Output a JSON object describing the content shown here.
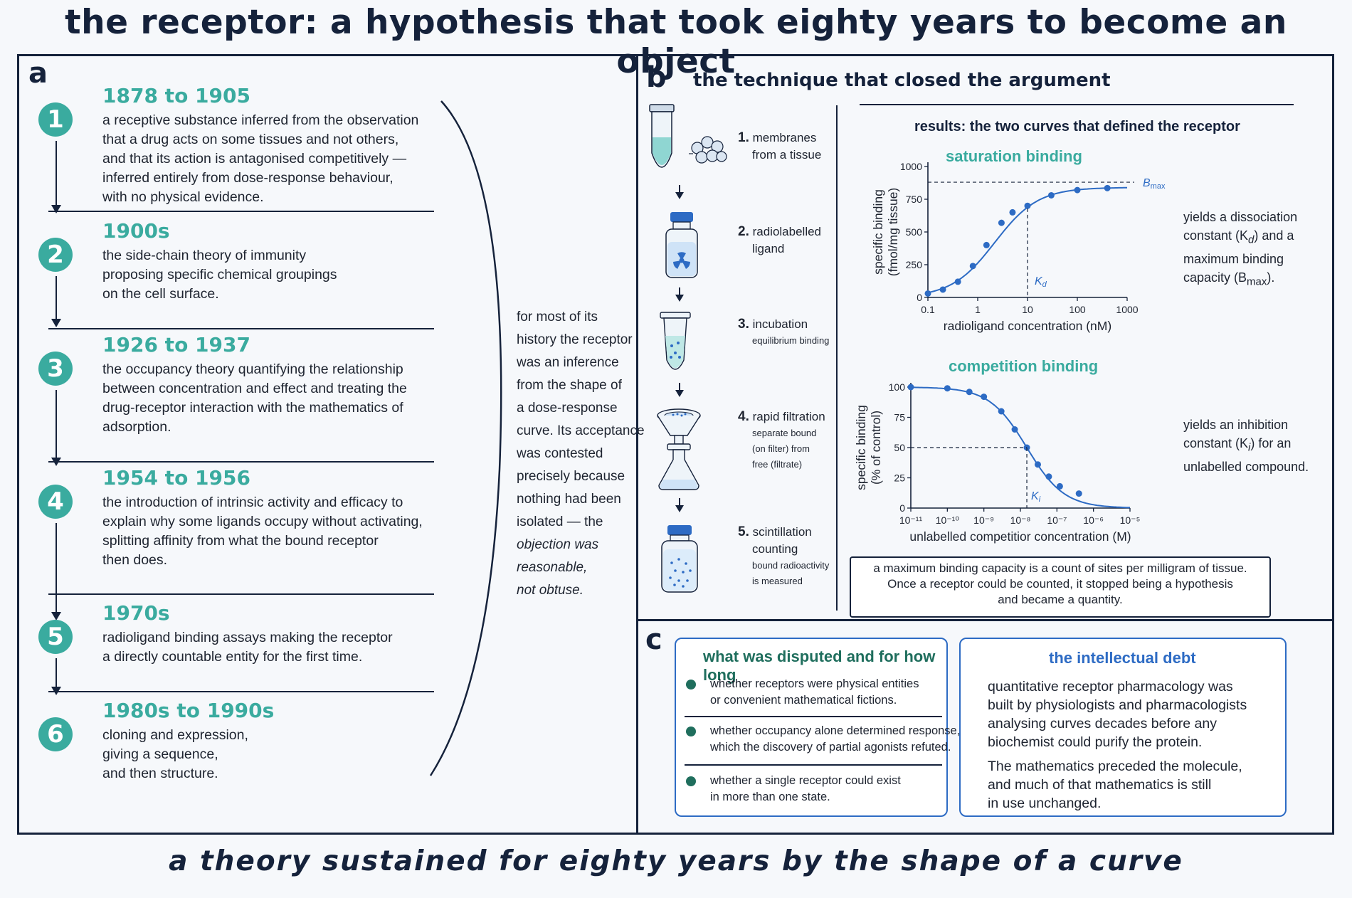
{
  "title": "the receptor: a hypothesis that took eighty years to become an object",
  "footer": "a theory sustained for eighty years by the shape of a curve",
  "panel_a": {
    "letter": "a",
    "items": [
      {
        "num": "1",
        "period": "1878 to 1905",
        "lines": [
          "a receptive substance inferred from the observation",
          "that a drug acts on some tissues and not others,",
          "and that its action is antagonised competitively —",
          "inferred entirely from dose-response behaviour,",
          "with no physical evidence."
        ]
      },
      {
        "num": "2",
        "period": "1900s",
        "lines": [
          "the side-chain theory of immunity",
          "proposing specific chemical groupings",
          "on the cell surface."
        ]
      },
      {
        "num": "3",
        "period": "1926 to 1937",
        "lines": [
          "the occupancy theory quantifying the relationship",
          "between concentration and effect and treating the",
          "drug-receptor interaction with the mathematics of",
          "adsorption."
        ]
      },
      {
        "num": "4",
        "period": "1954 to 1956",
        "lines": [
          "the introduction of intrinsic activity and efficacy to",
          "explain why some ligands occupy without activating,",
          "splitting affinity from what the bound receptor",
          "then does."
        ]
      },
      {
        "num": "5",
        "period": "1970s",
        "lines": [
          "radioligand binding assays making the receptor",
          "a directly countable entity for the first time."
        ]
      },
      {
        "num": "6",
        "period": "1980s to 1990s",
        "lines": [
          "cloning and expression,",
          "giving a sequence,",
          "and then structure."
        ]
      }
    ],
    "side_note": {
      "lines": [
        "for most of its",
        "history the receptor",
        "was an inference",
        "from the shape of",
        "a dose-response",
        "curve. Its acceptance",
        "was contested",
        "precisely because",
        "nothing had been",
        "isolated — the"
      ],
      "italic_lines": [
        "objection was",
        "reasonable,",
        "not obtuse."
      ]
    }
  },
  "panel_b": {
    "letter": "b",
    "heading": "the technique that closed the argument",
    "steps": [
      {
        "num": "1.",
        "label": "membranes",
        "label2": "from a tissue",
        "detail": []
      },
      {
        "num": "2.",
        "label": "radiolabelled",
        "label2": "ligand",
        "detail": []
      },
      {
        "num": "3.",
        "label": "incubation",
        "label2": "",
        "detail": [
          "equilibrium binding"
        ]
      },
      {
        "num": "4.",
        "label": "rapid filtration",
        "label2": "",
        "detail": [
          "separate bound",
          "(on filter) from",
          "free (filtrate)"
        ]
      },
      {
        "num": "5.",
        "label": "scintillation",
        "label2": "counting",
        "detail": [
          "bound radioactivity",
          "is measured"
        ]
      }
    ],
    "results_title": "results: the two curves that defined the receptor",
    "saturation_yields": [
      "yields a dissociation",
      "constant (K",
      "d",
      ") and a",
      "maximum binding",
      "capacity (B",
      "max",
      ")."
    ],
    "competition_yields": [
      "yields an inhibition",
      "constant (K",
      "i",
      ") for an",
      "unlabelled compound."
    ],
    "callout": [
      "a maximum binding capacity is a count of sites per milligram of tissue.",
      "Once a receptor could be counted, it stopped being a hypothesis",
      "and became a quantity."
    ]
  },
  "chart_data": [
    {
      "type": "scatter",
      "title": "saturation binding",
      "xlabel": "radioligand concentration (nM)",
      "ylabel": "specific binding (fmol/mg tissue)",
      "x_scale": "log",
      "xlim": [
        0.1,
        1000
      ],
      "ylim": [
        0,
        1000
      ],
      "x_ticks": [
        "0.1",
        "1",
        "10",
        "100",
        "1000"
      ],
      "y_ticks": [
        "0",
        "250",
        "500",
        "750",
        "1000"
      ],
      "x": [
        0.1,
        0.2,
        0.4,
        0.8,
        1.5,
        3,
        5,
        10,
        30,
        100,
        400
      ],
      "y": [
        30,
        60,
        120,
        240,
        400,
        570,
        650,
        700,
        780,
        820,
        835
      ],
      "fit": "hyperbola",
      "bmax": 880,
      "kd": 10,
      "annotations": [
        {
          "text": "B",
          "sub": "max"
        },
        {
          "text": "K",
          "sub": "d"
        }
      ]
    },
    {
      "type": "scatter",
      "title": "competition binding",
      "xlabel": "unlabelled competitior concentration (M)",
      "ylabel": "specific binding (% of control)",
      "x_scale": "log",
      "xlim": [
        1e-11,
        1e-05
      ],
      "ylim": [
        0,
        100
      ],
      "x_ticks": [
        "10⁻¹¹",
        "10⁻¹⁰",
        "10⁻⁹",
        "10⁻⁸",
        "10⁻⁷",
        "10⁻⁶",
        "10⁻⁵"
      ],
      "y_ticks": [
        "0",
        "25",
        "50",
        "75",
        "100"
      ],
      "x": [
        1e-11,
        1e-10,
        4e-10,
        1e-09,
        3e-09,
        7e-09,
        1.5e-08,
        3e-08,
        6e-08,
        1.2e-07,
        4e-07
      ],
      "y": [
        100,
        99,
        96,
        92,
        80,
        65,
        50,
        36,
        26,
        18,
        12
      ],
      "fit": "sigmoid",
      "ki": 1.5e-08,
      "annotations": [
        {
          "text": "K",
          "sub": "i"
        }
      ]
    }
  ],
  "panel_c": {
    "letter": "c",
    "disputed": {
      "title": "what was disputed and for how long",
      "items": [
        [
          "whether receptors were physical entities",
          "or convenient mathematical fictions."
        ],
        [
          "whether occupancy alone determined response,",
          "which the discovery of partial agonists refuted."
        ],
        [
          "whether a single receptor could exist",
          "in more than one state."
        ]
      ]
    },
    "debt": {
      "title": "the intellectual debt",
      "para1": [
        "quantitative receptor pharmacology was",
        "built by physiologists and pharmacologists",
        "analysing curves decades before any",
        "biochemist could purify the protein."
      ],
      "para2": [
        "The mathematics preceded the molecule,",
        "and much of that mathematics is still",
        "in use unchanged."
      ]
    }
  },
  "colors": {
    "navy": "#15223b",
    "teal": "#3aab9f",
    "blue": "#2d6bc4",
    "dark_teal": "#1f6e5d"
  }
}
